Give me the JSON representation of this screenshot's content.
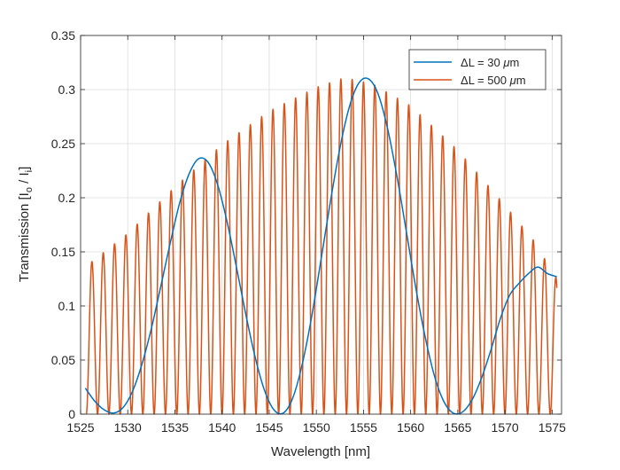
{
  "chart_data": {
    "type": "line",
    "xlabel": "Wavelength [nm]",
    "ylabel": "Transmission [I",
    "ylabel_sub1": "o",
    "ylabel_mid": " / I",
    "ylabel_sub2": "i",
    "ylabel_end": "]",
    "xlim": [
      1525,
      1576
    ],
    "ylim": [
      0,
      0.35
    ],
    "x_ticks": [
      1525,
      1530,
      1535,
      1540,
      1545,
      1550,
      1555,
      1560,
      1565,
      1570,
      1575
    ],
    "y_ticks": [
      0,
      0.05,
      0.1,
      0.15,
      0.2,
      0.25,
      0.3,
      0.35
    ],
    "x_tick_labels": [
      "1525",
      "1530",
      "1535",
      "1540",
      "1545",
      "1550",
      "1555",
      "1560",
      "1565",
      "1570",
      "1575"
    ],
    "y_tick_labels": [
      "0",
      "0.05",
      "0.1",
      "0.15",
      "0.2",
      "0.25",
      "0.3",
      "0.35"
    ],
    "grid": true,
    "legend_position": "top-right",
    "legend": [
      {
        "delta": "Δ",
        "text": "L = 30 ",
        "mu": "μ",
        "unit": "m"
      },
      {
        "delta": "Δ",
        "text": "L = 500 ",
        "mu": "μ",
        "unit": "m"
      }
    ],
    "series": [
      {
        "color": "#0072BD",
        "x": [
          1525.5,
          1526.5,
          1527.5,
          1528.5,
          1529.5,
          1530.5,
          1531.5,
          1532.5,
          1533.5,
          1534.5,
          1535.5,
          1536.5,
          1537.5,
          1538.5,
          1539.5,
          1540.5,
          1541.5,
          1542.5,
          1543.5,
          1544.5,
          1545.5,
          1546.5,
          1547.5,
          1548.5,
          1549.5,
          1550.5,
          1551.5,
          1552.5,
          1553.5,
          1554.5,
          1555.5,
          1556.5,
          1557.5,
          1558.5,
          1559.5,
          1560.5,
          1561.5,
          1562.5,
          1563.5,
          1564.5,
          1565.5,
          1566.5,
          1567.5,
          1568.5,
          1569.5,
          1570.5,
          1571.5,
          1572.5,
          1573.5,
          1574.5,
          1575.5
        ],
        "values": [
          0.024,
          0.012,
          0.004,
          0.001,
          0.006,
          0.021,
          0.046,
          0.079,
          0.118,
          0.158,
          0.195,
          0.222,
          0.236,
          0.233,
          0.213,
          0.179,
          0.137,
          0.093,
          0.053,
          0.022,
          0.004,
          0.001,
          0.015,
          0.046,
          0.09,
          0.143,
          0.197,
          0.246,
          0.284,
          0.306,
          0.31,
          0.297,
          0.266,
          0.222,
          0.171,
          0.119,
          0.073,
          0.036,
          0.012,
          0.001,
          0.002,
          0.013,
          0.033,
          0.059,
          0.088,
          0.11,
          0.121,
          0.13,
          0.136,
          0.13,
          0.127
        ]
      },
      {
        "color": "#D95319",
        "fsr_nm": 1.2,
        "first_peak_x": 1526.2,
        "x_end": 1575.5,
        "envelope_x": [
          1526.2,
          1530,
          1535,
          1540,
          1545,
          1550,
          1553,
          1556,
          1560,
          1565,
          1570,
          1573,
          1575.5
        ],
        "envelope_values": [
          0.141,
          0.167,
          0.21,
          0.249,
          0.28,
          0.302,
          0.311,
          0.305,
          0.285,
          0.244,
          0.193,
          0.161,
          0.125
        ]
      }
    ]
  }
}
